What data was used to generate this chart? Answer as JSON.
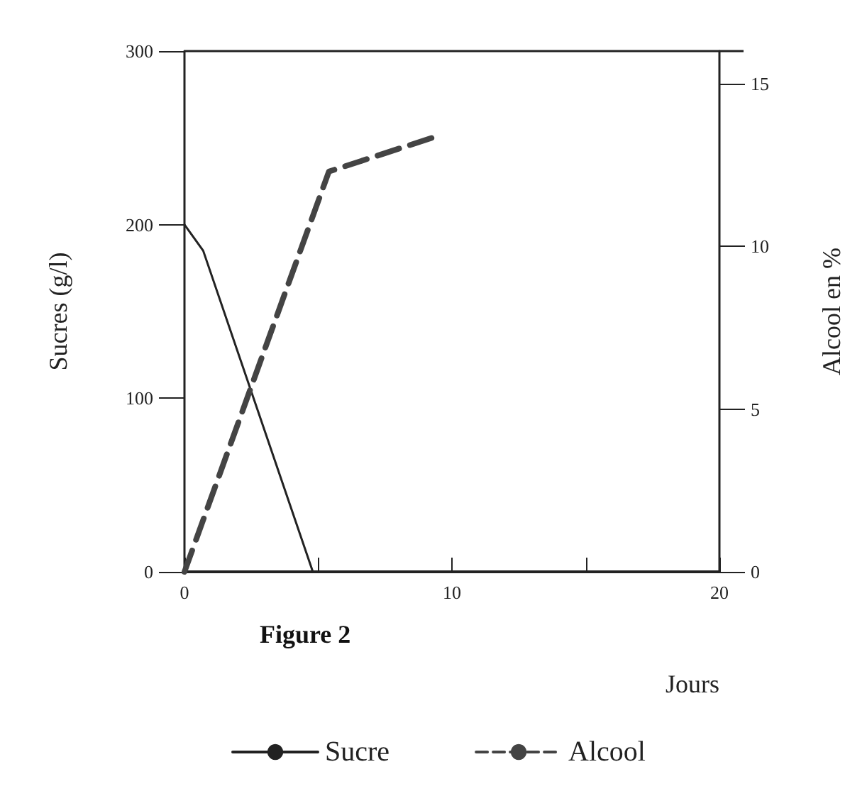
{
  "chart_data": {
    "type": "line",
    "xlabel": "Jours",
    "ylabel": "Sucres (g/l)",
    "y2label": "Alcool en %",
    "annotations": [
      "Figure 2"
    ],
    "xlim": [
      0,
      20
    ],
    "xticks": [
      0,
      {
        "value": 5,
        "label": null
      },
      10,
      {
        "value": 15,
        "label": null
      },
      20
    ],
    "ylim": [
      0,
      300
    ],
    "yticks": [
      0,
      100,
      200,
      300
    ],
    "y2lim": [
      0,
      16
    ],
    "y2ticks": [
      0,
      5,
      10,
      15
    ],
    "series": [
      {
        "name": "Sucre",
        "color": "#222222",
        "x": [
          0,
          0.7,
          4.8
        ],
        "values": [
          200,
          185,
          0
        ],
        "line_style": "solid"
      },
      {
        "name": "Alcool",
        "color": "#444444",
        "axis": "y2",
        "x": [
          0,
          5.4,
          9.5
        ],
        "values": [
          0,
          12.3,
          13.4
        ],
        "line_style": "dashed"
      }
    ],
    "legend": "bottom",
    "grid": false,
    "marker": "none"
  }
}
